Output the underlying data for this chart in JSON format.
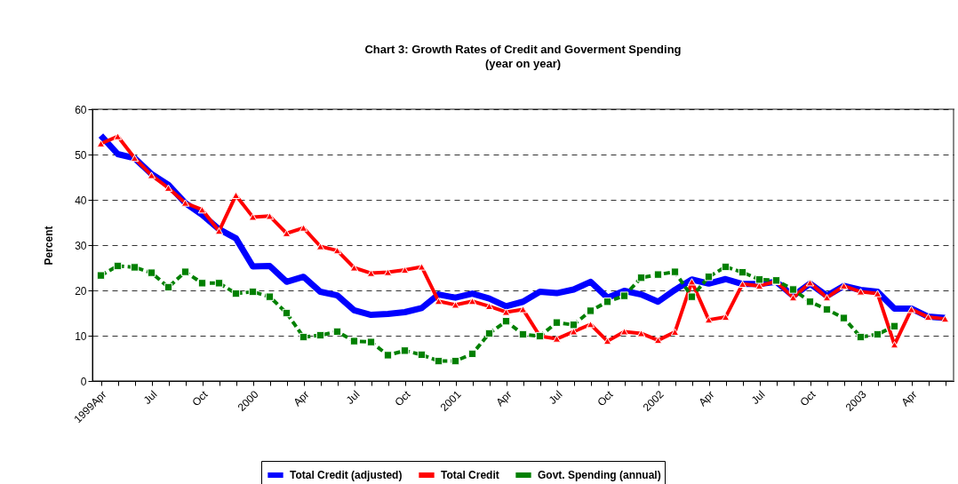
{
  "chart_data": {
    "type": "line",
    "title": "Chart 3: Growth Rates of Credit and Goverment Spending",
    "subtitle": "(year on year)",
    "ylabel": "Percent",
    "categories": [
      "1999Apr",
      null,
      null,
      "Jul",
      null,
      null,
      "Oct",
      null,
      null,
      "2000",
      null,
      null,
      "Apr",
      null,
      null,
      "Jul",
      null,
      null,
      "Oct",
      null,
      null,
      "2001",
      null,
      null,
      "Apr",
      null,
      null,
      "Jul",
      null,
      null,
      "Oct",
      null,
      null,
      "2002",
      null,
      null,
      "Apr",
      null,
      null,
      "Jul",
      null,
      null,
      "Oct",
      null,
      null,
      "2003",
      null,
      null,
      "Apr",
      null,
      null
    ],
    "ylim": [
      0,
      60
    ],
    "yticks": [
      0,
      10,
      20,
      30,
      40,
      50,
      60
    ],
    "grid": "y",
    "legend": "bottom",
    "series": [
      {
        "name": "Total Credit (adjusted)",
        "color": "#0000ff",
        "marker": "none",
        "line_style": "solid",
        "values": [
          54.2,
          50.1,
          49.2,
          45.7,
          43.3,
          39.3,
          36.7,
          33.5,
          31.5,
          25.3,
          25.4,
          21.9,
          23.0,
          19.7,
          18.9,
          15.6,
          14.6,
          14.8,
          15.2,
          16.1,
          19.1,
          18.4,
          19.3,
          18.2,
          16.5,
          17.5,
          19.7,
          19.4,
          20.2,
          21.9,
          18.4,
          19.9,
          19.1,
          17.5,
          20.1,
          22.4,
          21.5,
          22.5,
          21.4,
          21.4,
          21.9,
          18.8,
          21.5,
          18.8,
          21.0,
          20.1,
          19.7,
          16.0,
          16.0,
          14.2,
          13.9
        ]
      },
      {
        "name": "Total Credit",
        "color": "#ff0000",
        "marker": "triangle",
        "line_style": "solid",
        "values": [
          52.4,
          54.0,
          49.2,
          45.4,
          42.6,
          39.3,
          37.8,
          33.1,
          41.0,
          36.2,
          36.4,
          32.6,
          33.8,
          29.7,
          28.8,
          25.0,
          23.8,
          24.0,
          24.5,
          25.2,
          17.6,
          16.8,
          17.6,
          16.5,
          15.2,
          15.8,
          9.9,
          9.3,
          10.9,
          12.5,
          8.8,
          10.9,
          10.5,
          9.0,
          10.8,
          21.9,
          13.5,
          14.1,
          21.4,
          21.0,
          22.0,
          18.4,
          21.7,
          18.4,
          21.0,
          19.7,
          19.3,
          8.0,
          15.8,
          14.1,
          13.7
        ]
      },
      {
        "name": "Govt. Spending (annual)",
        "color": "#008000",
        "marker": "square",
        "line_style": "dashed",
        "values": [
          23.3,
          25.4,
          25.1,
          23.9,
          20.7,
          24.1,
          21.6,
          21.6,
          19.3,
          19.7,
          18.6,
          15.0,
          9.7,
          10.1,
          10.9,
          8.8,
          8.6,
          5.7,
          6.7,
          5.8,
          4.4,
          4.4,
          6.0,
          10.5,
          13.2,
          10.3,
          9.9,
          12.9,
          12.4,
          15.5,
          17.5,
          18.8,
          22.8,
          23.5,
          24.1,
          18.6,
          23.0,
          25.2,
          24.0,
          22.4,
          22.2,
          20.2,
          17.5,
          15.8,
          13.9,
          9.7,
          10.3,
          12.1,
          null,
          null,
          null
        ]
      }
    ]
  }
}
